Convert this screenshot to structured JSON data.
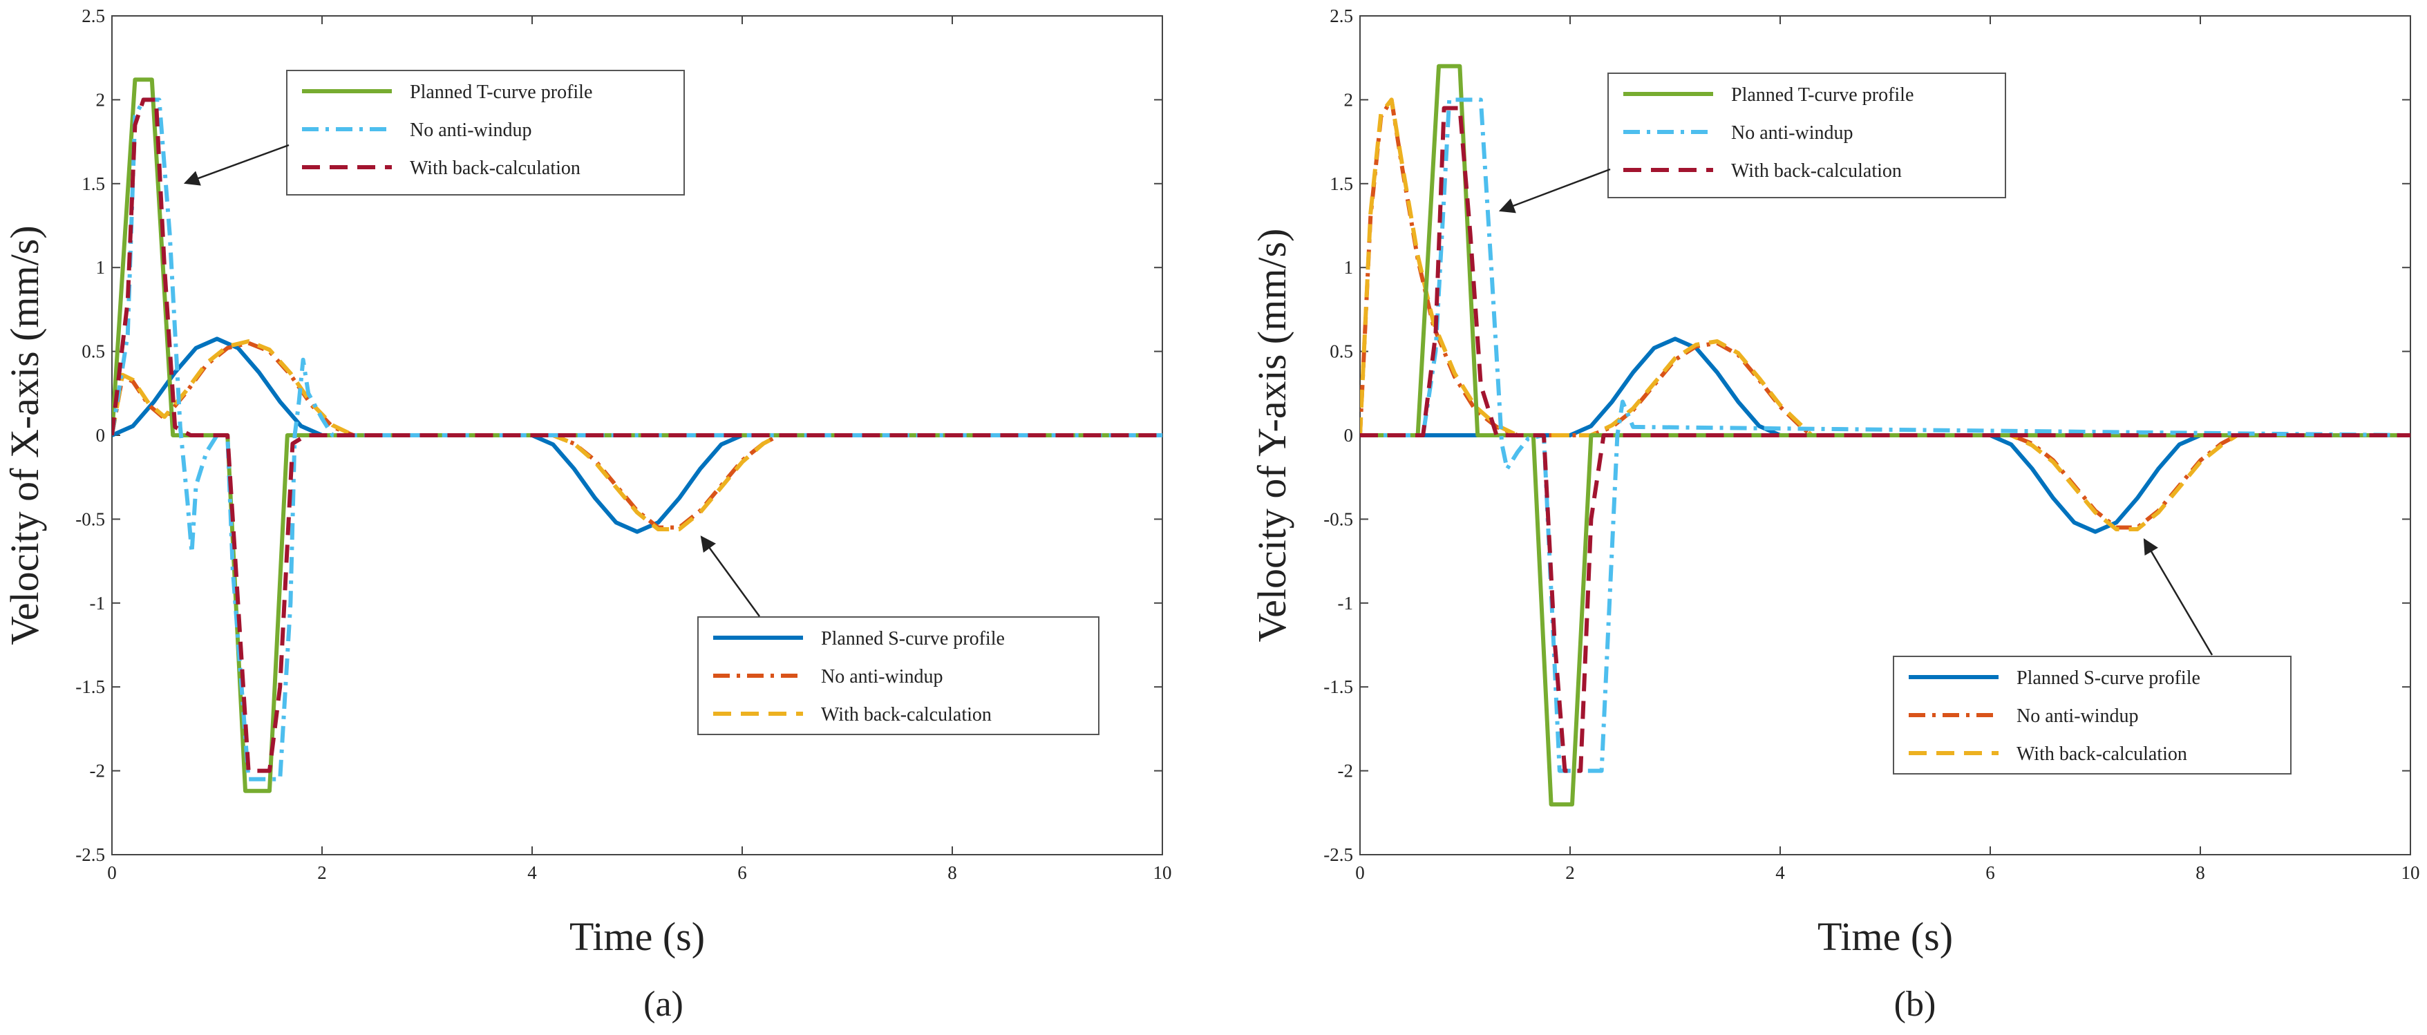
{
  "chart_data": [
    {
      "type": "line",
      "panel_label": "(a)",
      "xlabel": "Time (s)",
      "ylabel": "Velocity of X-axis (mm/s)",
      "xlim": [
        0,
        10
      ],
      "ylim": [
        -2.5,
        2.5
      ],
      "xticks": [
        "0",
        "2",
        "4",
        "6",
        "8",
        "10"
      ],
      "yticks": [
        "2.5",
        "2",
        "1.5",
        "1",
        "0.5",
        "0",
        "-0.5",
        "-1",
        "-1.5",
        "-2",
        "-2.5"
      ],
      "grid": false,
      "legends": [
        {
          "position": "upper-left",
          "entries": [
            "Planned T-curve profile",
            "No anti-windup",
            "With back-calculation"
          ]
        },
        {
          "position": "lower-right",
          "entries": [
            "Planned S-curve profile",
            "No anti-windup",
            "With back-calculation"
          ]
        }
      ],
      "series": [
        {
          "name": "Planned T-curve profile",
          "color": "#77ac30",
          "style": "solid",
          "x": [
            0,
            0.22,
            0.38,
            0.58,
            1.1,
            1.27,
            1.5,
            1.67,
            10
          ],
          "y": [
            0,
            2.12,
            2.12,
            0,
            0,
            -2.12,
            -2.12,
            0,
            0
          ]
        },
        {
          "name": "No anti-windup",
          "color": "#4dbeee",
          "style": "dashdot",
          "x": [
            0,
            0.15,
            0.22,
            0.3,
            0.45,
            0.55,
            0.65,
            0.72,
            0.76,
            0.8,
            0.9,
            1.0,
            1.1,
            1.15,
            1.3,
            1.35,
            1.45,
            1.6,
            1.7,
            1.74,
            1.78,
            1.82,
            1.87,
            2.0,
            2.1,
            10
          ],
          "y": [
            0,
            0.6,
            1.9,
            2.0,
            2.0,
            1.2,
            0.05,
            -0.4,
            -0.7,
            -0.3,
            -0.1,
            0,
            0,
            -0.8,
            -2.05,
            -2.05,
            -2.05,
            -2.05,
            -1.0,
            0.0,
            0.2,
            0.45,
            0.25,
            0.1,
            0,
            0
          ]
        },
        {
          "name": "With back-calculation",
          "color": "#a2142f",
          "style": "dash",
          "x": [
            0,
            0.15,
            0.22,
            0.3,
            0.42,
            0.5,
            0.6,
            0.75,
            1.0,
            1.1,
            1.2,
            1.3,
            1.5,
            1.6,
            1.72,
            1.85,
            10
          ],
          "y": [
            0,
            0.8,
            1.85,
            2.0,
            2.0,
            1.0,
            0.05,
            0,
            0,
            0,
            -1.0,
            -2.0,
            -2.0,
            -1.5,
            -0.05,
            0,
            0
          ]
        },
        {
          "name": "Planned S-curve profile",
          "color": "#0072bd",
          "style": "solid",
          "x": [
            0,
            0.2,
            0.4,
            0.6,
            0.8,
            1.0,
            1.2,
            1.4,
            1.6,
            1.8,
            2.0,
            4.0,
            4.2,
            4.4,
            4.6,
            4.8,
            5.0,
            5.2,
            5.4,
            5.6,
            5.8,
            6.0,
            10
          ],
          "y": [
            0,
            0.055,
            0.2,
            0.375,
            0.52,
            0.575,
            0.52,
            0.375,
            0.2,
            0.055,
            0,
            0,
            -0.055,
            -0.2,
            -0.375,
            -0.52,
            -0.575,
            -0.52,
            -0.375,
            -0.2,
            -0.055,
            0,
            0
          ]
        },
        {
          "name": "No anti-windup",
          "color": "#d95319",
          "style": "dashdot",
          "x": [
            0,
            0.1,
            0.2,
            0.35,
            0.5,
            0.7,
            0.9,
            1.1,
            1.3,
            1.5,
            1.7,
            1.9,
            2.1,
            2.3,
            4.2,
            4.4,
            4.6,
            4.8,
            5.0,
            5.2,
            5.4,
            5.6,
            5.8,
            6.0,
            6.2,
            6.35,
            10
          ],
          "y": [
            0,
            0.35,
            0.32,
            0.18,
            0.1,
            0.25,
            0.42,
            0.52,
            0.55,
            0.5,
            0.36,
            0.18,
            0.05,
            0,
            0,
            -0.05,
            -0.15,
            -0.3,
            -0.45,
            -0.55,
            -0.55,
            -0.45,
            -0.3,
            -0.15,
            -0.05,
            0,
            0
          ]
        },
        {
          "name": "With back-calculation",
          "color": "#edb120",
          "style": "dash",
          "x": [
            0,
            0.1,
            0.2,
            0.35,
            0.5,
            0.7,
            0.9,
            1.1,
            1.3,
            1.5,
            1.7,
            1.9,
            2.1,
            2.3,
            4.2,
            4.4,
            4.6,
            4.8,
            5.0,
            5.2,
            5.4,
            5.6,
            5.8,
            6.0,
            6.2,
            6.35,
            10
          ],
          "y": [
            0,
            0.36,
            0.33,
            0.19,
            0.11,
            0.26,
            0.43,
            0.53,
            0.56,
            0.51,
            0.37,
            0.19,
            0.06,
            0,
            0,
            -0.05,
            -0.16,
            -0.31,
            -0.46,
            -0.56,
            -0.56,
            -0.46,
            -0.31,
            -0.16,
            -0.05,
            0,
            0
          ]
        }
      ]
    },
    {
      "type": "line",
      "panel_label": "(b)",
      "xlabel": "Time (s)",
      "ylabel": "Velocity of Y-axis (mm/s)",
      "xlim": [
        0,
        10
      ],
      "ylim": [
        -2.5,
        2.5
      ],
      "xticks": [
        "0",
        "2",
        "4",
        "6",
        "8",
        "10"
      ],
      "yticks": [
        "2.5",
        "2",
        "1.5",
        "1",
        "0.5",
        "0",
        "-0.5",
        "-1",
        "-1.5",
        "-2",
        "-2.5"
      ],
      "grid": false,
      "legends": [
        {
          "position": "upper-left",
          "entries": [
            "Planned T-curve profile",
            "No anti-windup",
            "With back-calculation"
          ]
        },
        {
          "position": "lower-right",
          "entries": [
            "Planned S-curve profile",
            "No anti-windup",
            "With back-calculation"
          ]
        }
      ],
      "series": [
        {
          "name": "Planned T-curve profile",
          "color": "#77ac30",
          "style": "solid",
          "x": [
            0,
            0.55,
            0.75,
            0.95,
            1.12,
            1.65,
            1.82,
            2.02,
            2.2,
            10
          ],
          "y": [
            0,
            0,
            2.2,
            2.2,
            0,
            0,
            -2.2,
            -2.2,
            0,
            0
          ]
        },
        {
          "name": "No anti-windup",
          "color": "#4dbeee",
          "style": "dashdot",
          "x": [
            0,
            0.6,
            0.72,
            0.85,
            1.15,
            1.25,
            1.35,
            1.4,
            1.5,
            1.6,
            1.75,
            1.9,
            2.0,
            2.3,
            2.45,
            2.5,
            2.6,
            10
          ],
          "y": [
            0,
            0,
            0.5,
            2.0,
            2.0,
            1.0,
            -0.05,
            -0.2,
            -0.1,
            -0.02,
            0,
            -2.0,
            -2.0,
            -2.0,
            0.0,
            0.2,
            0.05,
            0
          ]
        },
        {
          "name": "With back-calculation",
          "color": "#a2142f",
          "style": "dash",
          "x": [
            0,
            0.6,
            0.72,
            0.8,
            0.95,
            1.05,
            1.15,
            1.3,
            1.75,
            1.85,
            1.95,
            2.1,
            2.2,
            2.32,
            10
          ],
          "y": [
            0,
            0,
            0.6,
            1.95,
            1.95,
            1.2,
            0.3,
            0,
            0,
            -1.2,
            -2.0,
            -2.0,
            -0.5,
            0,
            0
          ]
        },
        {
          "name": "Planned S-curve profile",
          "color": "#0072bd",
          "style": "solid",
          "x": [
            0,
            2.0,
            2.2,
            2.4,
            2.6,
            2.8,
            3.0,
            3.2,
            3.4,
            3.6,
            3.8,
            4.0,
            6.0,
            6.2,
            6.4,
            6.6,
            6.8,
            7.0,
            7.2,
            7.4,
            7.6,
            7.8,
            8.0,
            10
          ],
          "y": [
            0,
            0,
            0.055,
            0.2,
            0.375,
            0.52,
            0.575,
            0.52,
            0.375,
            0.2,
            0.055,
            0,
            0,
            -0.055,
            -0.2,
            -0.375,
            -0.52,
            -0.575,
            -0.52,
            -0.375,
            -0.2,
            -0.055,
            0,
            0
          ]
        },
        {
          "name": "No anti-windup",
          "color": "#d95319",
          "style": "dashdot",
          "x": [
            0,
            0.1,
            0.2,
            0.3,
            0.4,
            0.55,
            0.7,
            0.9,
            1.1,
            1.3,
            1.5,
            2.2,
            2.4,
            2.6,
            2.8,
            3.0,
            3.2,
            3.4,
            3.6,
            3.8,
            4.0,
            4.2,
            4.3,
            6.2,
            6.4,
            6.6,
            6.8,
            7.0,
            7.2,
            7.4,
            7.6,
            7.8,
            8.0,
            8.2,
            8.35,
            10
          ],
          "y": [
            0,
            1.3,
            1.9,
            2.0,
            1.6,
            1.05,
            0.65,
            0.35,
            0.15,
            0.05,
            0,
            0,
            0.05,
            0.15,
            0.3,
            0.45,
            0.53,
            0.55,
            0.48,
            0.33,
            0.17,
            0.05,
            0,
            0,
            -0.05,
            -0.15,
            -0.3,
            -0.45,
            -0.55,
            -0.55,
            -0.45,
            -0.3,
            -0.15,
            -0.05,
            0,
            0
          ]
        },
        {
          "name": "With back-calculation",
          "color": "#edb120",
          "style": "dash",
          "x": [
            0,
            0.1,
            0.2,
            0.3,
            0.4,
            0.55,
            0.7,
            0.9,
            1.1,
            1.3,
            1.5,
            2.2,
            2.4,
            2.6,
            2.8,
            3.0,
            3.2,
            3.4,
            3.6,
            3.8,
            4.0,
            4.2,
            4.3,
            6.2,
            6.4,
            6.6,
            6.8,
            7.0,
            7.2,
            7.4,
            7.6,
            7.8,
            8.0,
            8.2,
            8.35,
            10
          ],
          "y": [
            0,
            1.32,
            1.92,
            2.0,
            1.62,
            1.07,
            0.67,
            0.37,
            0.17,
            0.06,
            0,
            0,
            0.06,
            0.16,
            0.31,
            0.46,
            0.54,
            0.56,
            0.49,
            0.34,
            0.18,
            0.06,
            0,
            0,
            -0.06,
            -0.16,
            -0.31,
            -0.46,
            -0.56,
            -0.56,
            -0.46,
            -0.31,
            -0.16,
            -0.06,
            0,
            0
          ]
        }
      ]
    }
  ]
}
